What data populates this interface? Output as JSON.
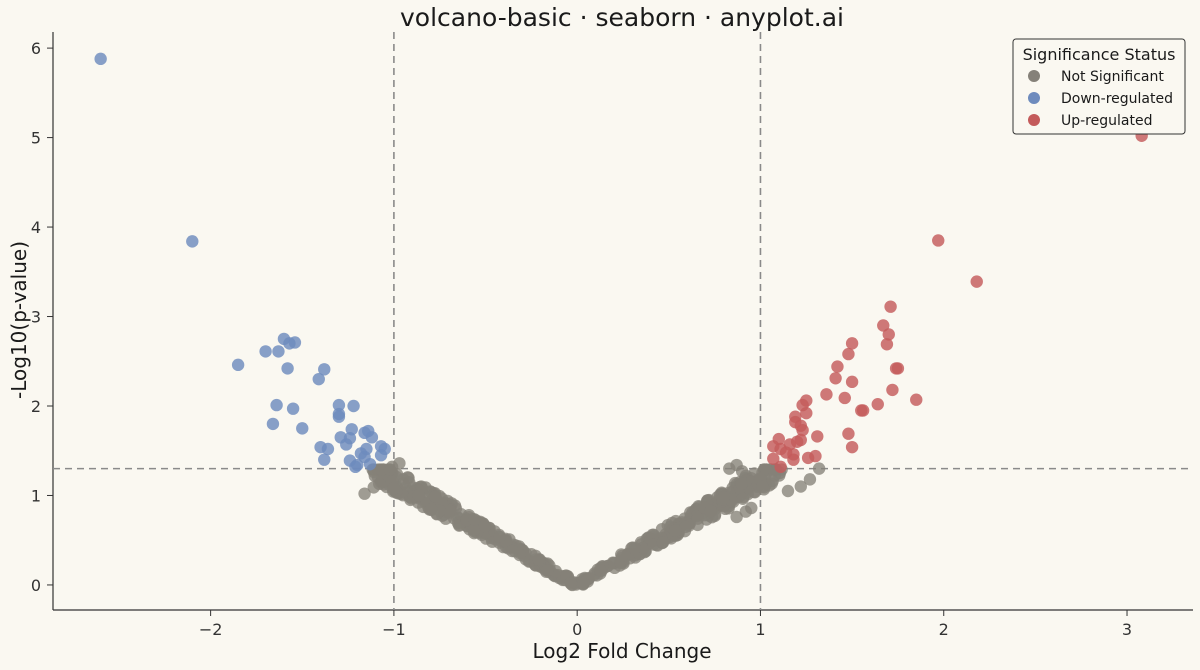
{
  "chart_data": {
    "type": "scatter",
    "title": "volcano-basic · seaborn · anyplot.ai",
    "xlabel": "Log2 Fold Change",
    "ylabel": "-Log10(p-value)",
    "xlim": [
      -2.86,
      3.36
    ],
    "ylim": [
      -0.28,
      6.18
    ],
    "xticks": [
      -2,
      -1,
      0,
      1,
      2,
      3
    ],
    "yticks": [
      0,
      1,
      2,
      3,
      4,
      5,
      6
    ],
    "xtick_labels": [
      "−2",
      "−1",
      "0",
      "1",
      "2",
      "3"
    ],
    "ytick_labels": [
      "0",
      "1",
      "2",
      "3",
      "4",
      "5",
      "6"
    ],
    "grid": false,
    "thresholds": {
      "fold_change": [
        -1,
        1
      ],
      "neg_log10_p": 1.3
    },
    "legend": {
      "title": "Significance Status",
      "placement": "top-right",
      "entries": [
        {
          "label": "Not Significant",
          "color": "#858179"
        },
        {
          "label": "Down-regulated",
          "color": "#6e8bbd"
        },
        {
          "label": "Up-regulated",
          "color": "#c45b5b"
        }
      ]
    },
    "series": [
      {
        "name": "Down-regulated",
        "color": "#6e8bbd",
        "points": [
          [
            -2.6,
            5.88
          ],
          [
            -2.1,
            3.84
          ],
          [
            -1.85,
            2.46
          ],
          [
            -1.7,
            2.61
          ],
          [
            -1.63,
            2.61
          ],
          [
            -1.6,
            2.75
          ],
          [
            -1.57,
            2.7
          ],
          [
            -1.54,
            2.71
          ],
          [
            -1.58,
            2.42
          ],
          [
            -1.64,
            2.01
          ],
          [
            -1.66,
            1.8
          ],
          [
            -1.55,
            1.97
          ],
          [
            -1.5,
            1.75
          ],
          [
            -1.41,
            2.3
          ],
          [
            -1.38,
            2.41
          ],
          [
            -1.4,
            1.54
          ],
          [
            -1.36,
            1.52
          ],
          [
            -1.38,
            1.4
          ],
          [
            -1.3,
            2.01
          ],
          [
            -1.3,
            1.91
          ],
          [
            -1.3,
            1.88
          ],
          [
            -1.29,
            1.65
          ],
          [
            -1.22,
            2.0
          ],
          [
            -1.23,
            1.74
          ],
          [
            -1.24,
            1.64
          ],
          [
            -1.26,
            1.57
          ],
          [
            -1.24,
            1.39
          ],
          [
            -1.2,
            1.34
          ],
          [
            -1.16,
            1.7
          ],
          [
            -1.14,
            1.72
          ],
          [
            -1.12,
            1.65
          ],
          [
            -1.15,
            1.52
          ],
          [
            -1.16,
            1.43
          ],
          [
            -1.13,
            1.35
          ],
          [
            -1.07,
            1.55
          ],
          [
            -1.05,
            1.52
          ],
          [
            -1.07,
            1.45
          ],
          [
            -1.21,
            1.32
          ],
          [
            -1.18,
            1.47
          ]
        ]
      },
      {
        "name": "Up-regulated",
        "color": "#c45b5b",
        "points": [
          [
            3.08,
            5.02
          ],
          [
            1.97,
            3.85
          ],
          [
            2.18,
            3.39
          ],
          [
            1.71,
            3.11
          ],
          [
            1.67,
            2.9
          ],
          [
            1.7,
            2.8
          ],
          [
            1.69,
            2.69
          ],
          [
            1.75,
            2.42
          ],
          [
            1.72,
            2.18
          ],
          [
            1.85,
            2.07
          ],
          [
            1.64,
            2.02
          ],
          [
            1.56,
            1.95
          ],
          [
            1.5,
            2.7
          ],
          [
            1.48,
            2.58
          ],
          [
            1.42,
            2.44
          ],
          [
            1.5,
            2.27
          ],
          [
            1.41,
            2.31
          ],
          [
            1.46,
            2.09
          ],
          [
            1.36,
            2.13
          ],
          [
            1.48,
            1.69
          ],
          [
            1.5,
            1.54
          ],
          [
            1.25,
            2.06
          ],
          [
            1.23,
            2.01
          ],
          [
            1.25,
            1.92
          ],
          [
            1.19,
            1.88
          ],
          [
            1.22,
            1.78
          ],
          [
            1.31,
            1.66
          ],
          [
            1.23,
            1.73
          ],
          [
            1.22,
            1.62
          ],
          [
            1.19,
            1.82
          ],
          [
            1.2,
            1.6
          ],
          [
            1.1,
            1.63
          ],
          [
            1.07,
            1.55
          ],
          [
            1.11,
            1.52
          ],
          [
            1.16,
            1.57
          ],
          [
            1.18,
            1.46
          ],
          [
            1.18,
            1.4
          ],
          [
            1.26,
            1.42
          ],
          [
            1.3,
            1.44
          ],
          [
            1.14,
            1.48
          ],
          [
            1.07,
            1.41
          ],
          [
            1.11,
            1.32
          ],
          [
            1.74,
            2.42
          ],
          [
            1.55,
            1.95
          ]
        ]
      },
      {
        "name": "Not Significant",
        "color": "#858179",
        "generated_by": "v_shape",
        "count": 520,
        "points_extra": [
          [
            -1.16,
            1.02
          ],
          [
            -1.11,
            1.09
          ],
          [
            -1.08,
            1.13
          ],
          [
            -1.0,
            1.08
          ],
          [
            -0.97,
            1.36
          ],
          [
            -1.01,
            1.32
          ],
          [
            0.83,
            1.3
          ],
          [
            0.87,
            1.34
          ],
          [
            0.9,
            1.27
          ],
          [
            1.0,
            1.18
          ],
          [
            1.01,
            1.1
          ],
          [
            1.22,
            1.1
          ],
          [
            1.15,
            1.05
          ],
          [
            0.78,
            1.01
          ],
          [
            0.8,
            0.98
          ],
          [
            0.92,
            0.82
          ],
          [
            0.87,
            0.76
          ],
          [
            0.95,
            0.86
          ],
          [
            1.27,
            1.18
          ],
          [
            1.32,
            1.3
          ]
        ]
      }
    ]
  }
}
